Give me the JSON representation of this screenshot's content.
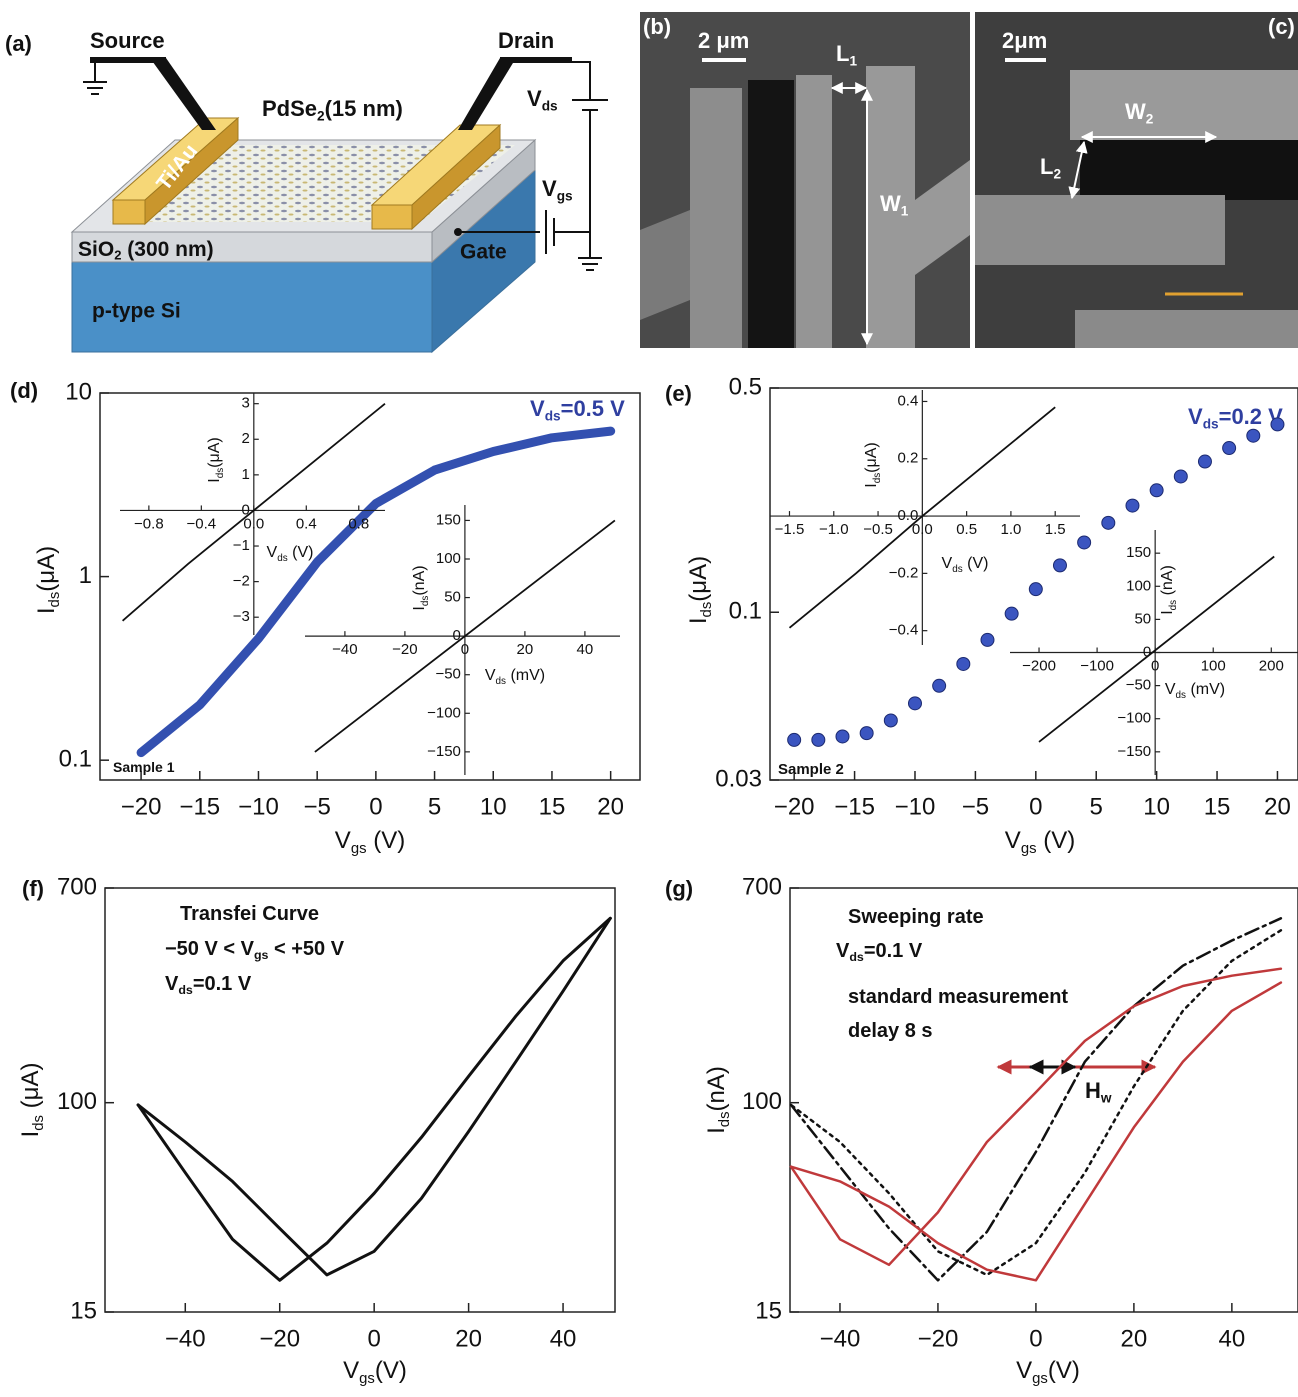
{
  "figure": {
    "a": {
      "label": "(a)",
      "source": "Source",
      "drain": "Drain",
      "film": [
        "PdSe",
        "2",
        "(15 nm)"
      ],
      "electrode": "Ti/Au",
      "vds": [
        "V",
        "ds"
      ],
      "vgs": [
        "V",
        "gs"
      ],
      "oxide": [
        "SiO",
        "2",
        " (300 nm)"
      ],
      "gate": "Gate",
      "substrate": "p-type Si"
    },
    "b": {
      "label": "(b)",
      "scale": "2 μm",
      "length": [
        "L",
        "1"
      ],
      "width": [
        "W",
        "1"
      ]
    },
    "c": {
      "label": "(c)",
      "scale": "2μm",
      "length": [
        "L",
        "2"
      ],
      "width": [
        "W",
        "2"
      ]
    }
  },
  "chart_data": [
    {
      "type": "line",
      "panel": "(d)",
      "ylog": true,
      "xlim": [
        -23.5,
        22.5
      ],
      "ylim": [
        0.078,
        10
      ],
      "xticks": [
        {
          "value": -20,
          "label": "−20"
        },
        {
          "value": -15,
          "label": "−15"
        },
        {
          "value": -10,
          "label": "−10"
        },
        {
          "value": -5,
          "label": "−5"
        },
        0,
        5,
        10,
        15,
        20
      ],
      "yticks": [
        10,
        1,
        0.1
      ],
      "xlabel": [
        "V",
        "gs",
        " (V)"
      ],
      "ylabel": [
        "I",
        "ds",
        "(μA)"
      ],
      "annotations": [
        {
          "parts": [
            "V",
            "ds",
            "=0.5 V"
          ],
          "color": "#2f3fa0"
        },
        {
          "parts": [
            "Sample 1"
          ]
        }
      ],
      "series": [
        {
          "color": "#3350b0",
          "line_style": "solid",
          "x": [
            -20,
            -15,
            -10,
            -5,
            0,
            5,
            10,
            15,
            20
          ],
          "values": [
            0.11,
            0.2,
            0.46,
            1.2,
            2.5,
            3.8,
            4.8,
            5.7,
            6.2
          ]
        }
      ],
      "insets": [
        {
          "type": "line",
          "xlim": [
            -1.02,
            1.0
          ],
          "ylim": [
            -3.5,
            3.3
          ],
          "xticks": [
            {
              "value": -0.8,
              "label": "−0.8"
            },
            {
              "value": -0.4,
              "label": "−0.4"
            },
            {
              "value": 0,
              "label": "0.0"
            },
            0.4,
            0.8
          ],
          "yticks": [
            3,
            2,
            1,
            0,
            {
              "value": -1,
              "label": "−1"
            },
            {
              "value": -2,
              "label": "−2"
            },
            {
              "value": -3,
              "label": "−3"
            }
          ],
          "xlabel": [
            "V",
            "ds",
            " (V)"
          ],
          "ylabel": [
            "I",
            "ds",
            "(μA)"
          ],
          "color": "#111111",
          "x": [
            -1,
            -0.5,
            0,
            0.5,
            1
          ],
          "values": [
            -3.1,
            -1.5,
            0,
            1.5,
            3.0
          ]
        },
        {
          "type": "line",
          "xlim": [
            -53.3,
            51.7
          ],
          "ylim": [
            -180,
            170
          ],
          "xticks": [
            {
              "value": -40,
              "label": "−40"
            },
            {
              "value": -20,
              "label": "−20"
            },
            0,
            20,
            40
          ],
          "yticks": [
            150,
            100,
            50,
            0,
            {
              "value": -50,
              "label": "−50"
            },
            {
              "value": -100,
              "label": "−100"
            },
            {
              "value": -150,
              "label": "−150"
            }
          ],
          "xlabel": [
            "V",
            "ds",
            " (mV)"
          ],
          "ylabel": [
            "I",
            "ds",
            "(nA)"
          ],
          "color": "#111111",
          "x": [
            -50,
            50
          ],
          "values": [
            -150,
            150
          ]
        }
      ]
    },
    {
      "type": "scatter",
      "panel": "(e)",
      "ylog": true,
      "xlim": [
        -22,
        21.7
      ],
      "ylim": [
        0.03,
        0.5
      ],
      "xticks": [
        {
          "value": -20,
          "label": "−20"
        },
        {
          "value": -15,
          "label": "−15"
        },
        {
          "value": -10,
          "label": "−10"
        },
        {
          "value": -5,
          "label": "−5"
        },
        0,
        5,
        10,
        15,
        20
      ],
      "yticks": [
        0.5,
        0.1,
        0.03
      ],
      "xlabel": [
        "V",
        "gs",
        " (V)"
      ],
      "ylabel": [
        "I",
        "ds",
        "(μA)"
      ],
      "annotations": [
        {
          "parts": [
            "V",
            "ds",
            "=0.2 V"
          ],
          "color": "#2f3fa0"
        },
        {
          "parts": [
            "Sample 2"
          ]
        }
      ],
      "series": [
        {
          "color": "#3b55c0",
          "x": [
            -20,
            -18,
            -16,
            -14,
            -12,
            -10,
            -8,
            -6,
            -4,
            -2,
            0,
            2,
            4,
            6,
            8,
            10,
            12,
            14,
            16,
            18,
            20
          ],
          "values": [
            0.04,
            0.04,
            0.041,
            0.042,
            0.046,
            0.052,
            0.059,
            0.069,
            0.082,
            0.099,
            0.118,
            0.14,
            0.165,
            0.19,
            0.215,
            0.24,
            0.265,
            0.295,
            0.325,
            0.355,
            0.385
          ]
        }
      ],
      "insets": [
        {
          "type": "line",
          "xlim": [
            -1.72,
            1.78
          ],
          "ylim": [
            -0.45,
            0.44
          ],
          "xticks": [
            {
              "value": -1.5,
              "label": "−1.5"
            },
            {
              "value": -1,
              "label": "−1.0"
            },
            {
              "value": -0.5,
              "label": "−0.5"
            },
            {
              "value": 0,
              "label": "0.0"
            },
            0.5,
            {
              "value": 1,
              "label": "1.0"
            },
            1.5
          ],
          "yticks": [
            0.4,
            0.2,
            {
              "value": 0,
              "label": "0.0"
            },
            {
              "value": -0.2,
              "label": "−0.2"
            },
            {
              "value": -0.4,
              "label": "−0.4"
            }
          ],
          "xlabel": [
            "V",
            "ds",
            " (V)"
          ],
          "ylabel": [
            "I",
            "ds",
            "(μA)"
          ],
          "color": "#111111",
          "x": [
            -1.5,
            -0.75,
            0,
            0.75,
            1.5
          ],
          "values": [
            -0.39,
            -0.2,
            0,
            0.19,
            0.38
          ]
        },
        {
          "type": "line",
          "xlim": [
            -250,
            246
          ],
          "ylim": [
            -185,
            185
          ],
          "xticks": [
            {
              "value": -200,
              "label": "−200"
            },
            {
              "value": -100,
              "label": "−100"
            },
            0,
            100,
            200
          ],
          "yticks": [
            150,
            100,
            50,
            0,
            {
              "value": -50,
              "label": "−50"
            },
            {
              "value": -100,
              "label": "−100"
            },
            {
              "value": -150,
              "label": "−150"
            }
          ],
          "xlabel": [
            "V",
            "ds",
            " (mV)"
          ],
          "ylabel": [
            "I",
            "ds",
            " (nA)"
          ],
          "color": "#111111",
          "x": [
            -200,
            205
          ],
          "values": [
            -135,
            145
          ]
        }
      ]
    },
    {
      "type": "line",
      "panel": "(f)",
      "ylog": true,
      "xlim": [
        -57,
        51
      ],
      "ylim": [
        15,
        700
      ],
      "xticks": [
        {
          "value": -40,
          "label": "−40"
        },
        {
          "value": -20,
          "label": "−20"
        },
        0,
        20,
        40
      ],
      "yticks": [
        700,
        100,
        15
      ],
      "xlabel": [
        "V",
        "gs",
        "(V)"
      ],
      "ylabel": [
        "I",
        "ds",
        " (μA)"
      ],
      "annotations": [
        {
          "parts": [
            "Transfei Curve"
          ]
        },
        {
          "parts": [
            "−50 V < V",
            "gs",
            " < +50 V"
          ]
        },
        {
          "parts": [
            "V",
            "ds",
            "=0.1 V"
          ]
        }
      ],
      "series": [
        {
          "color": "#111111",
          "line_style": "solid",
          "x": [
            -50,
            -40,
            -30,
            -20,
            -10,
            0,
            10,
            20,
            30,
            40,
            50
          ],
          "values": [
            98,
            53,
            29,
            20,
            28,
            44,
            73,
            127,
            219,
            362,
            532
          ]
        },
        {
          "color": "#111111",
          "line_style": "solid",
          "x": [
            -50,
            -40,
            -30,
            -20,
            -10,
            0,
            10,
            20,
            30,
            40,
            50
          ],
          "values": [
            98,
            70,
            49,
            32,
            21,
            26,
            42,
            77,
            145,
            275,
            532
          ]
        }
      ]
    },
    {
      "type": "line",
      "panel": "(g)",
      "ylog": true,
      "xlim": [
        -50.2,
        53.5
      ],
      "ylim": [
        15,
        700
      ],
      "xticks": [
        {
          "value": -40,
          "label": "−40"
        },
        {
          "value": -20,
          "label": "−20"
        },
        0,
        20,
        40
      ],
      "yticks": [
        700,
        100,
        15
      ],
      "xlabel": [
        "V",
        "gs",
        "(V)"
      ],
      "ylabel": [
        "I",
        "ds",
        "(nA)"
      ],
      "annotations": [
        {
          "parts": [
            "Sweeping rate"
          ]
        },
        {
          "parts": [
            "V",
            "ds",
            "=0.1 V"
          ]
        },
        {
          "parts": [
            "standard measurement"
          ]
        },
        {
          "parts": [
            "delay 8 s"
          ]
        },
        {
          "parts": [
            "H",
            "w"
          ]
        }
      ],
      "series": [
        {
          "color": "#111111",
          "line_style": "dashdot",
          "x": [
            -50,
            -40,
            -30,
            -20,
            -10,
            0,
            10,
            20,
            30,
            40,
            50
          ],
          "values": [
            98,
            56,
            32,
            20,
            31,
            64,
            145,
            240,
            346,
            435,
            532
          ]
        },
        {
          "color": "#111111",
          "line_style": "dotted",
          "x": [
            50,
            40,
            30,
            20,
            10,
            0,
            -10,
            -20,
            -30,
            -40,
            -50
          ],
          "values": [
            477,
            362,
            230,
            116,
            53,
            28,
            21,
            26,
            44,
            70,
            98
          ]
        },
        {
          "color": "#c0393b",
          "line_style": "solid",
          "x": [
            -50,
            -40,
            -30,
            -20,
            -10,
            0,
            10,
            20,
            30,
            40,
            50
          ],
          "values": [
            56,
            29,
            23,
            37,
            70,
            110,
            175,
            240,
            288,
            316,
            337
          ]
        },
        {
          "color": "#c0393b",
          "line_style": "solid",
          "x": [
            50,
            40,
            30,
            20,
            10,
            0,
            -10,
            -20,
            -30,
            -40,
            -50
          ],
          "values": [
            297,
            230,
            145,
            80,
            40,
            20,
            22,
            28,
            39,
            49,
            56
          ]
        }
      ]
    }
  ]
}
